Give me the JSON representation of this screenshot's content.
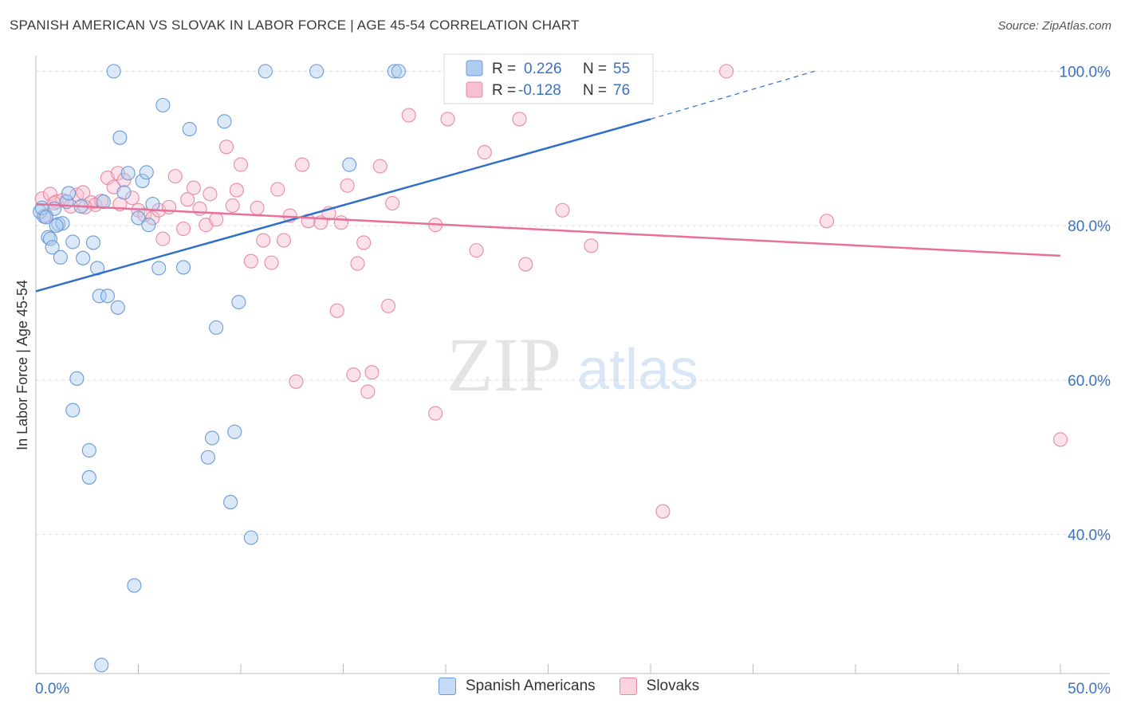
{
  "title": "SPANISH AMERICAN VS SLOVAK IN LABOR FORCE | AGE 45-54 CORRELATION CHART",
  "source": "Source: ZipAtlas.com",
  "watermark": {
    "zip": "ZIP",
    "atlas": "atlas"
  },
  "legend_box": {
    "r_label": "R =",
    "n_label": "N =",
    "rows": [
      {
        "r": "0.226",
        "n": "55"
      },
      {
        "r": "-0.128",
        "n": "76"
      }
    ]
  },
  "colors": {
    "blue_fill": "#aecbf0",
    "blue_stroke": "#6b9bd6",
    "blue_line": "#2f6fc9",
    "pink_fill": "#f7bfd0",
    "pink_stroke": "#e88aa7",
    "pink_line": "#e8709a",
    "tick_text": "#3a72c4",
    "grid": "#dddddd"
  },
  "chart_data": {
    "type": "scatter",
    "title": "SPANISH AMERICAN VS SLOVAK IN LABOR FORCE | AGE 45-54 CORRELATION CHART",
    "xlabel": "",
    "ylabel": "In Labor Force | Age 45-54",
    "xlim": [
      0,
      50
    ],
    "ylim": [
      22,
      102
    ],
    "x_tick_labels": [
      "0.0%",
      "50.0%"
    ],
    "y_ticks": [
      40,
      60,
      80,
      100
    ],
    "y_tick_labels": [
      "40.0%",
      "60.0%",
      "80.0%",
      "100.0%"
    ],
    "grid": true,
    "legend_position": "bottom",
    "series": [
      {
        "name": "Spanish Americans",
        "color": "#aecbf0",
        "r": 0.226,
        "n": 55,
        "trend": {
          "x0": 0,
          "y0": 71.5,
          "x1": 30,
          "y1": 93.8,
          "dashed_to_x": 38,
          "dashed_to_y": 100
        },
        "points": [
          [
            0.2,
            81.8
          ],
          [
            0.4,
            81.2
          ],
          [
            0.6,
            78.5
          ],
          [
            0.7,
            78.3
          ],
          [
            0.8,
            77.2
          ],
          [
            0.9,
            82.2
          ],
          [
            1.1,
            80.2
          ],
          [
            1.2,
            75.9
          ],
          [
            1.3,
            80.3
          ],
          [
            1.5,
            83.1
          ],
          [
            1.6,
            84.2
          ],
          [
            1.8,
            77.9
          ],
          [
            2.2,
            82.5
          ],
          [
            2.3,
            75.8
          ],
          [
            2.8,
            77.8
          ],
          [
            3.0,
            74.5
          ],
          [
            3.1,
            70.9
          ],
          [
            3.3,
            83.1
          ],
          [
            3.5,
            70.9
          ],
          [
            3.8,
            100
          ],
          [
            4.0,
            69.4
          ],
          [
            4.1,
            91.4
          ],
          [
            4.3,
            84.3
          ],
          [
            4.5,
            86.8
          ],
          [
            4.8,
            33.4
          ],
          [
            5.0,
            81.0
          ],
          [
            5.2,
            85.8
          ],
          [
            5.4,
            86.9
          ],
          [
            5.5,
            80.1
          ],
          [
            5.7,
            82.8
          ],
          [
            6.0,
            74.5
          ],
          [
            6.2,
            95.6
          ],
          [
            7.2,
            74.6
          ],
          [
            7.5,
            92.5
          ],
          [
            8.4,
            50.0
          ],
          [
            8.6,
            52.5
          ],
          [
            8.8,
            66.8
          ],
          [
            9.2,
            93.5
          ],
          [
            9.5,
            44.2
          ],
          [
            9.7,
            53.3
          ],
          [
            9.9,
            70.1
          ],
          [
            10.5,
            39.6
          ],
          [
            11.2,
            100
          ],
          [
            13.7,
            100
          ],
          [
            15.3,
            87.9
          ],
          [
            17.5,
            100
          ],
          [
            17.7,
            100
          ],
          [
            1.8,
            56.1
          ],
          [
            2.0,
            60.2
          ],
          [
            2.6,
            50.9
          ],
          [
            2.6,
            47.4
          ],
          [
            3.2,
            23.1
          ],
          [
            0.3,
            82.3
          ],
          [
            0.5,
            81.1
          ],
          [
            1.0,
            80.0
          ]
        ]
      },
      {
        "name": "Slovaks",
        "color": "#f7bfd0",
        "r": -0.128,
        "n": 76,
        "trend": {
          "x0": 0,
          "y0": 82.8,
          "x1": 50,
          "y1": 76.1
        },
        "points": [
          [
            0.3,
            83.5
          ],
          [
            0.5,
            81.3
          ],
          [
            0.7,
            84.1
          ],
          [
            1.0,
            83.1
          ],
          [
            1.3,
            83.3
          ],
          [
            1.7,
            82.5
          ],
          [
            2.0,
            84.0
          ],
          [
            2.3,
            84.3
          ],
          [
            2.7,
            83.0
          ],
          [
            2.9,
            82.7
          ],
          [
            3.2,
            83.2
          ],
          [
            3.5,
            86.2
          ],
          [
            3.8,
            85.0
          ],
          [
            4.0,
            86.8
          ],
          [
            4.3,
            85.9
          ],
          [
            4.7,
            83.6
          ],
          [
            5.0,
            82.0
          ],
          [
            5.3,
            81.4
          ],
          [
            5.7,
            81.0
          ],
          [
            6.0,
            82.0
          ],
          [
            6.2,
            78.3
          ],
          [
            6.5,
            82.4
          ],
          [
            6.8,
            86.4
          ],
          [
            7.2,
            79.6
          ],
          [
            7.4,
            83.4
          ],
          [
            7.7,
            84.9
          ],
          [
            8.0,
            82.2
          ],
          [
            8.3,
            80.1
          ],
          [
            8.5,
            84.1
          ],
          [
            8.8,
            80.8
          ],
          [
            9.3,
            90.2
          ],
          [
            9.6,
            82.6
          ],
          [
            9.8,
            84.6
          ],
          [
            10.0,
            87.9
          ],
          [
            10.5,
            75.4
          ],
          [
            10.8,
            82.3
          ],
          [
            11.1,
            78.1
          ],
          [
            11.5,
            75.2
          ],
          [
            11.8,
            84.7
          ],
          [
            12.1,
            78.1
          ],
          [
            12.4,
            81.3
          ],
          [
            12.7,
            59.8
          ],
          [
            13.0,
            87.9
          ],
          [
            13.3,
            80.6
          ],
          [
            13.9,
            80.4
          ],
          [
            14.3,
            81.6
          ],
          [
            14.7,
            69.0
          ],
          [
            14.9,
            80.4
          ],
          [
            15.2,
            85.2
          ],
          [
            15.5,
            60.7
          ],
          [
            15.7,
            75.1
          ],
          [
            16.0,
            77.8
          ],
          [
            16.2,
            58.5
          ],
          [
            16.4,
            61.0
          ],
          [
            16.8,
            87.7
          ],
          [
            17.2,
            69.6
          ],
          [
            17.4,
            82.9
          ],
          [
            18.2,
            94.3
          ],
          [
            19.5,
            55.7
          ],
          [
            19.5,
            80.1
          ],
          [
            20.1,
            93.8
          ],
          [
            21.0,
            100
          ],
          [
            21.5,
            76.8
          ],
          [
            21.9,
            89.5
          ],
          [
            23.6,
            93.8
          ],
          [
            23.9,
            75.0
          ],
          [
            25.7,
            82.0
          ],
          [
            27.1,
            77.4
          ],
          [
            28.6,
            100
          ],
          [
            30.6,
            43.0
          ],
          [
            33.7,
            100
          ],
          [
            38.6,
            80.6
          ],
          [
            50.0,
            52.3
          ],
          [
            0.9,
            82.9
          ],
          [
            2.4,
            82.4
          ],
          [
            4.1,
            82.8
          ]
        ]
      }
    ]
  }
}
